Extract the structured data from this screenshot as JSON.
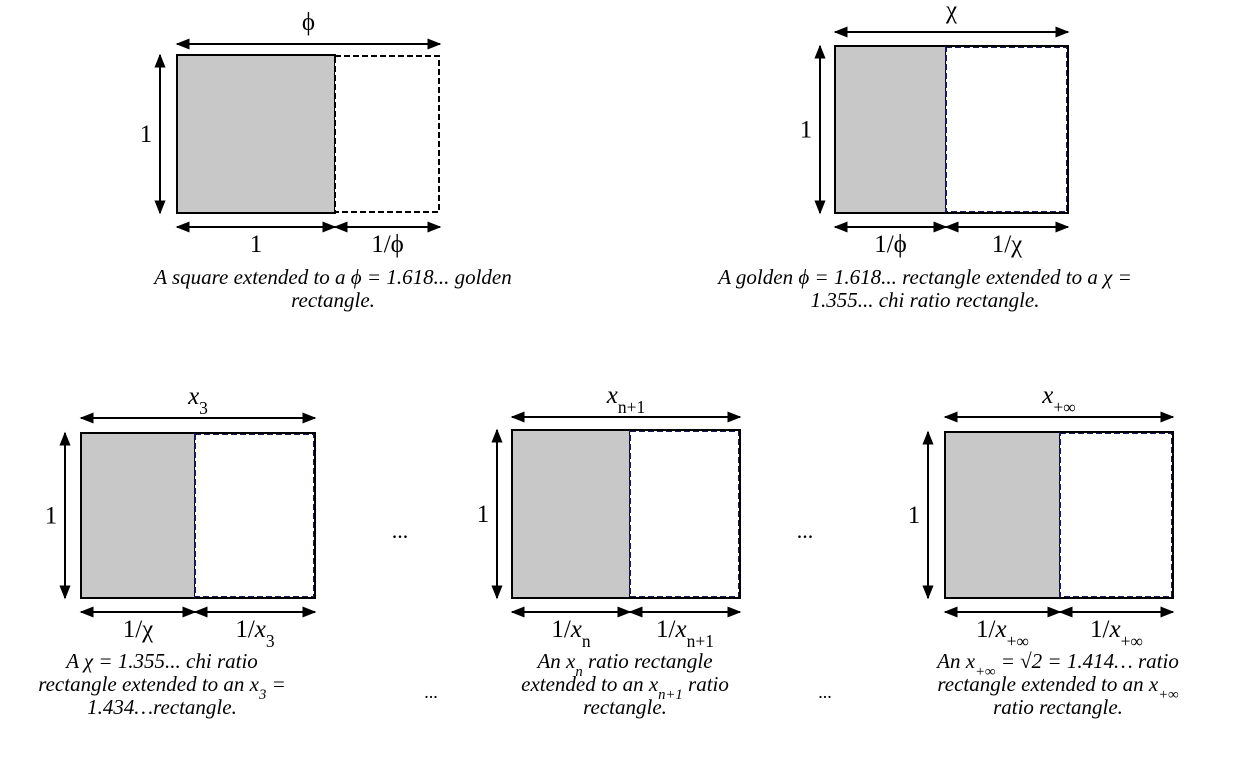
{
  "panels": [
    {
      "top": [
        "ϕ"
      ],
      "left": [
        "1"
      ],
      "bottom_left": [
        "1"
      ],
      "bottom_right": [
        "1/ϕ"
      ],
      "caption": [
        [
          "A square extended to a ϕ = 1.618... golden"
        ],
        [
          "rectangle."
        ]
      ]
    },
    {
      "top": [
        "χ"
      ],
      "left": [
        "1"
      ],
      "bottom_left": [
        "1/ϕ"
      ],
      "bottom_right": [
        "1/χ"
      ],
      "caption": [
        [
          "A golden ϕ = 1.618... rectangle extended to a χ ="
        ],
        [
          "1.355... chi ratio rectangle."
        ]
      ]
    },
    {
      "top": [
        {
          "i": "x"
        },
        {
          "sub": "3"
        }
      ],
      "left": [
        "1"
      ],
      "bottom_left": [
        "1/χ"
      ],
      "bottom_right": [
        "1/",
        {
          "i": "x"
        },
        {
          "sub": "3"
        }
      ],
      "caption": [
        [
          "A χ = 1.355... chi ratio"
        ],
        [
          "rectangle extended to an x",
          {
            "sub": "3"
          },
          " ="
        ],
        [
          "1.434…rectangle."
        ]
      ]
    },
    {
      "top": [
        {
          "i": "x"
        },
        {
          "sub": "n+1"
        }
      ],
      "left": [
        "1"
      ],
      "bottom_left": [
        "1/",
        {
          "i": "x"
        },
        {
          "sub": "n"
        }
      ],
      "bottom_right": [
        "1/",
        {
          "i": "x"
        },
        {
          "sub": "n+1"
        }
      ],
      "caption": [
        [
          "An x",
          {
            "sub": "n"
          },
          " ratio rectangle"
        ],
        [
          "extended to an x",
          {
            "sub": "n+1"
          },
          " ratio"
        ],
        [
          "rectangle."
        ]
      ]
    },
    {
      "top": [
        {
          "i": "x"
        },
        {
          "sub": "+∞"
        }
      ],
      "left": [
        "1"
      ],
      "bottom_left": [
        "1/",
        {
          "i": "x"
        },
        {
          "sub": "+∞"
        }
      ],
      "bottom_right": [
        "1/",
        {
          "i": "x"
        },
        {
          "sub": "+∞"
        }
      ],
      "caption": [
        [
          "An x",
          {
            "sub": "+∞"
          },
          " = √2 = 1.414… ratio"
        ],
        [
          "rectangle extended to an x",
          {
            "sub": "+∞"
          }
        ],
        [
          "ratio rectangle."
        ]
      ]
    }
  ],
  "ellipses": [
    "...",
    "...",
    "...",
    "..."
  ]
}
